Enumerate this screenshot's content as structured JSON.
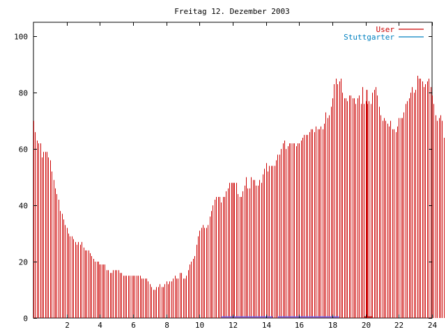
{
  "chart_data": {
    "type": "bar",
    "title": "Freitag 12. Dezember 2003",
    "xlabel": "",
    "ylabel": "",
    "xlim": [
      0,
      24
    ],
    "ylim": [
      0,
      105
    ],
    "x_ticks": [
      2,
      4,
      6,
      8,
      10,
      12,
      14,
      16,
      18,
      20,
      22,
      24
    ],
    "x_tick_labels": [
      "2",
      "4",
      "6",
      "8",
      "10",
      "12",
      "14",
      "16",
      "18",
      "20",
      "22",
      "24"
    ],
    "y_ticks": [
      0,
      20,
      40,
      60,
      80,
      100
    ],
    "y_tick_labels": [
      "0",
      "20",
      "40",
      "60",
      "80",
      "100"
    ],
    "grid": false,
    "legend_position": "top-right",
    "series": [
      {
        "name": "User",
        "color": "#cc0000",
        "x_start": 0,
        "x_step": 0.1,
        "values": [
          70,
          66,
          63,
          62,
          62,
          57,
          59,
          59,
          59,
          57,
          56,
          52,
          49,
          46,
          44,
          42,
          38,
          37,
          35,
          33,
          32,
          30,
          29,
          29,
          28,
          27,
          26,
          27,
          26,
          27,
          25,
          24,
          24,
          24,
          23,
          22,
          21,
          20,
          20,
          20,
          19,
          19,
          19,
          19,
          17,
          17,
          16,
          16,
          17,
          17,
          17,
          17,
          16,
          16,
          15,
          15,
          15,
          15,
          15,
          15,
          15,
          15,
          15,
          15,
          15,
          14,
          14,
          14,
          14,
          13,
          12,
          11,
          10,
          10,
          11,
          11,
          12,
          11,
          11,
          12,
          13,
          12,
          13,
          13,
          14,
          15,
          14,
          14,
          16,
          16,
          14,
          14,
          15,
          17,
          19,
          20,
          21,
          22,
          26,
          29,
          31,
          32,
          33,
          32,
          32,
          33,
          36,
          38,
          40,
          42,
          43,
          43,
          43,
          41,
          43,
          43,
          45,
          46,
          48,
          48,
          47,
          48,
          48,
          44,
          43,
          43,
          45,
          47,
          50,
          46,
          46,
          50,
          49,
          49,
          47,
          47,
          49,
          48,
          51,
          53,
          55,
          52,
          54,
          54,
          54,
          54,
          56,
          58,
          58,
          60,
          62,
          63,
          60,
          61,
          62,
          62,
          62,
          62,
          61,
          62,
          62,
          63,
          64,
          65,
          65,
          65,
          66,
          67,
          67,
          66,
          68,
          67,
          67,
          68,
          67,
          69,
          73,
          71,
          72,
          75,
          78,
          83,
          85,
          83,
          84,
          85,
          80,
          78,
          78,
          77,
          79,
          79,
          78,
          78,
          76,
          78,
          79,
          76,
          82,
          76,
          77,
          76,
          77,
          76,
          80,
          81,
          82,
          79,
          75,
          72,
          70,
          71,
          70,
          69,
          68,
          70,
          67,
          67,
          66,
          68,
          71,
          71,
          71,
          73,
          76,
          77,
          78,
          80,
          82,
          80,
          81,
          86,
          85,
          85,
          84,
          82,
          83,
          84,
          85,
          82,
          79,
          76,
          72,
          70,
          71,
          72,
          70,
          64
        ]
      },
      {
        "name": "Stuttgarter",
        "color": "#0080c0",
        "values": []
      }
    ],
    "vertical_markers": [
      {
        "x": 4.0,
        "y": 19,
        "color": "#cc0000"
      },
      {
        "x": 12.0,
        "y": 48,
        "color": "#cc0000"
      },
      {
        "x": 20.05,
        "y": 81,
        "color": "#cc0000"
      }
    ],
    "baseline_segments": [
      {
        "x_start": 11.3,
        "x_end": 14.4,
        "color": "#6060ff"
      },
      {
        "x_start": 14.7,
        "x_end": 18.4,
        "color": "#6060ff"
      },
      {
        "x_start": 19.9,
        "x_end": 20.4,
        "color": "#cc0000"
      }
    ]
  }
}
